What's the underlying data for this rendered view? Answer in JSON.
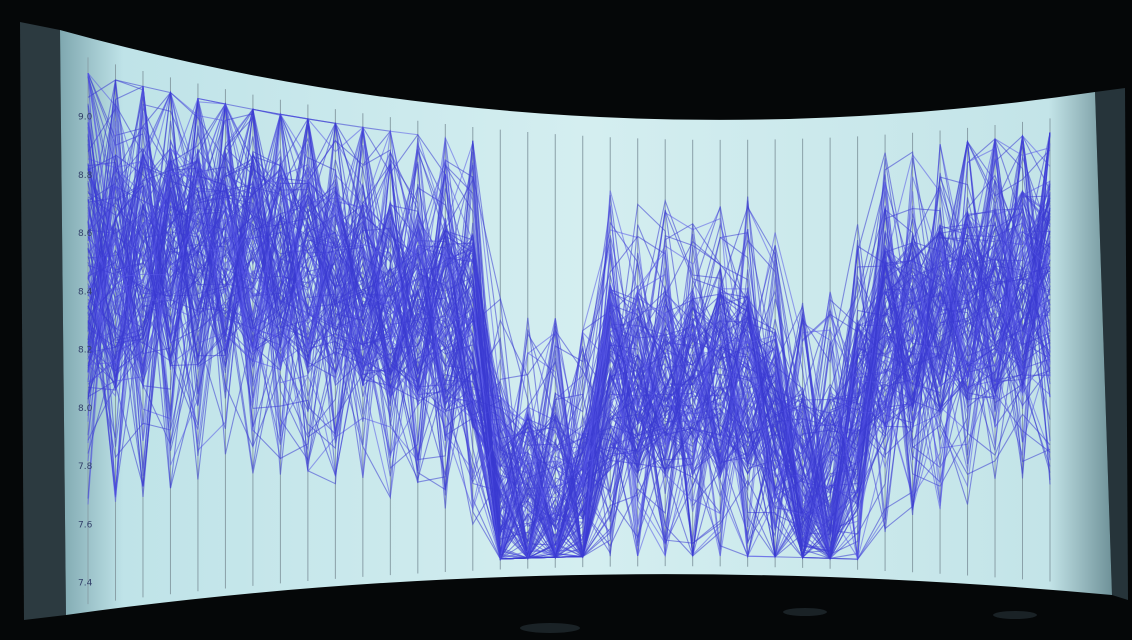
{
  "scene": {
    "left_axis_ticks": [
      "9.0",
      "8.8",
      "8.6",
      "8.4",
      "8.2",
      "8.0",
      "7.8",
      "7.6",
      "7.4"
    ]
  }
}
